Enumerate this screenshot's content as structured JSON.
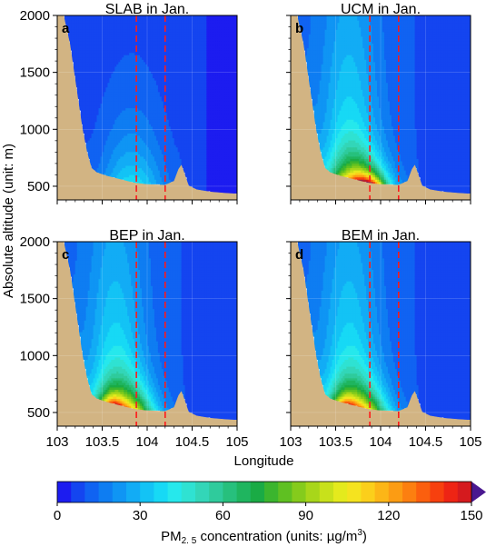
{
  "figure": {
    "ylabel": "Absolute altitude (unit: m)",
    "xlabel": "Longitude",
    "colorbar_label": "PM",
    "colorbar_label_sub": "2. 5",
    "colorbar_label_rest": " concentration (units: µg/m",
    "colorbar_label_sup": "3",
    "colorbar_label_end": ")",
    "colors": {
      "terrain": "#d2b483",
      "dashed_line": "#ff1a1a"
    }
  },
  "chart_data": [
    {
      "type": "heatmap",
      "panel": "a",
      "title": "SLAB in Jan.",
      "xlim": [
        103,
        105
      ],
      "ylim": [
        380,
        2000
      ],
      "xticks": [
        "103",
        "103.5",
        "104",
        "104.5",
        "105"
      ],
      "yticks": [
        "2000",
        "1500",
        "1000",
        "500"
      ],
      "dashed_lines_x": [
        103.88,
        104.2
      ],
      "concentration_range": [
        5,
        35
      ]
    },
    {
      "type": "heatmap",
      "panel": "b",
      "title": "UCM in Jan.",
      "xlim": [
        103,
        105
      ],
      "ylim": [
        380,
        2000
      ],
      "xticks": [
        "103",
        "103.5",
        "104",
        "104.5",
        "105"
      ],
      "yticks": [
        "2000",
        "1500",
        "1000",
        "500"
      ],
      "dashed_lines_x": [
        103.88,
        104.2
      ],
      "concentration_range": [
        10,
        150
      ]
    },
    {
      "type": "heatmap",
      "panel": "c",
      "title": "BEP in Jan.",
      "xlim": [
        103,
        105
      ],
      "ylim": [
        380,
        2000
      ],
      "xticks": [
        "103",
        "103.5",
        "104",
        "104.5",
        "105"
      ],
      "yticks": [
        "2000",
        "1500",
        "1000",
        "500"
      ],
      "dashed_lines_x": [
        103.88,
        104.2
      ],
      "concentration_range": [
        10,
        115
      ]
    },
    {
      "type": "heatmap",
      "panel": "d",
      "title": "BEM in Jan.",
      "xlim": [
        103,
        105
      ],
      "ylim": [
        380,
        2000
      ],
      "xticks": [
        "103",
        "103.5",
        "104",
        "104.5",
        "105"
      ],
      "yticks": [
        "2000",
        "1500",
        "1000",
        "500"
      ],
      "dashed_lines_x": [
        103.88,
        104.2
      ],
      "concentration_range": [
        10,
        110
      ]
    }
  ],
  "colorbar": {
    "range": [
      0,
      150
    ],
    "step": 5,
    "ticks": [
      "0",
      "30",
      "60",
      "90",
      "120",
      "150"
    ],
    "extend": "max",
    "colors": [
      "#1c1cf0",
      "#1445f0",
      "#1063f2",
      "#0e7df2",
      "#0f95f4",
      "#12acf5",
      "#13c3f5",
      "#17d9f5",
      "#26e8ec",
      "#2fe2d2",
      "#33d6b8",
      "#2fcb9c",
      "#27c07d",
      "#1fb55f",
      "#1aab45",
      "#3bb52e",
      "#5fc022",
      "#85cb1c",
      "#a8d61a",
      "#c8e11b",
      "#e4ea1d",
      "#f5e31f",
      "#fbcf1b",
      "#fcb617",
      "#fc9c13",
      "#fc7f10",
      "#fb5f0e",
      "#f7400e",
      "#ee2414",
      "#d51a1e",
      "#b8202e",
      "#9a2444",
      "#7f225a",
      "#682072",
      "#551c88",
      "#4a1890"
    ]
  }
}
